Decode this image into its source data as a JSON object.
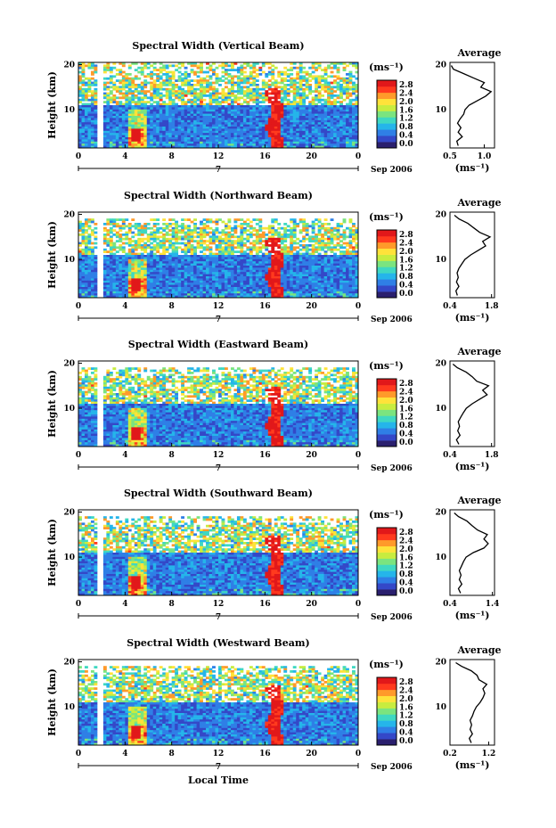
{
  "figure": {
    "x_axis_title": "Local Time",
    "date_label": "Sep 2006",
    "day_label": "7",
    "height_axis_title": "Height (km)",
    "unit_label": "(ms⁻¹)",
    "average_title": "Average",
    "colorbar_ticks": [
      "0.0",
      "0.4",
      "0.8",
      "1.2",
      "1.6",
      "2.0",
      "2.4",
      "2.8"
    ],
    "colors": {
      "colormap": [
        "#2a1f6e",
        "#3448c8",
        "#2f7fe6",
        "#25b5ea",
        "#3fd8c2",
        "#7be47f",
        "#c8ec3f",
        "#ffe23a",
        "#ff9a2a",
        "#ff3a1e",
        "#e1181a"
      ]
    }
  },
  "chart_data": [
    {
      "type": "heatmap",
      "title": "Spectral Width (Vertical Beam)",
      "x_ticks": [
        "0",
        "4",
        "8",
        "12",
        "16",
        "20",
        "0"
      ],
      "y_ticks": [
        "20",
        "10"
      ],
      "xlim": [
        0,
        24
      ],
      "ylim": [
        1.5,
        20.5
      ],
      "colorbar_range": [
        0.0,
        2.8
      ],
      "average_profile": {
        "x_ticks": [
          "0.5",
          "1.0"
        ],
        "xlim": [
          0.5,
          1.15
        ],
        "points": [
          [
            0.62,
            2
          ],
          [
            0.6,
            3
          ],
          [
            0.68,
            4
          ],
          [
            0.62,
            5
          ],
          [
            0.66,
            6
          ],
          [
            0.61,
            7
          ],
          [
            0.65,
            8
          ],
          [
            0.7,
            9
          ],
          [
            0.72,
            10
          ],
          [
            0.78,
            11
          ],
          [
            0.9,
            12
          ],
          [
            1.02,
            13
          ],
          [
            1.1,
            14
          ],
          [
            0.95,
            15
          ],
          [
            1.0,
            16
          ],
          [
            0.85,
            17
          ],
          [
            0.7,
            18
          ],
          [
            0.55,
            19
          ],
          [
            0.52,
            19.8
          ]
        ]
      }
    },
    {
      "type": "heatmap",
      "title": "Spectral Width (Northward Beam)",
      "x_ticks": [
        "0",
        "4",
        "8",
        "12",
        "16",
        "20",
        "0"
      ],
      "y_ticks": [
        "20",
        "10"
      ],
      "xlim": [
        0,
        24
      ],
      "ylim": [
        1.5,
        20.5
      ],
      "colorbar_range": [
        0.0,
        2.8
      ],
      "average_profile": {
        "x_ticks": [
          "0.4",
          "1.8"
        ],
        "xlim": [
          0.4,
          1.9
        ],
        "points": [
          [
            0.65,
            2
          ],
          [
            0.6,
            3
          ],
          [
            0.7,
            4
          ],
          [
            0.62,
            5
          ],
          [
            0.68,
            6
          ],
          [
            0.64,
            7
          ],
          [
            0.7,
            8
          ],
          [
            0.8,
            9
          ],
          [
            0.9,
            10
          ],
          [
            1.1,
            11
          ],
          [
            1.35,
            12
          ],
          [
            1.6,
            13
          ],
          [
            1.5,
            14
          ],
          [
            1.75,
            15
          ],
          [
            1.4,
            16
          ],
          [
            1.2,
            17
          ],
          [
            1.0,
            18
          ],
          [
            0.7,
            19
          ],
          [
            0.55,
            19.8
          ]
        ]
      }
    },
    {
      "type": "heatmap",
      "title": "Spectral Width (Eastward Beam)",
      "x_ticks": [
        "0",
        "4",
        "8",
        "12",
        "16",
        "20",
        "0"
      ],
      "y_ticks": [
        "20",
        "10"
      ],
      "xlim": [
        0,
        24
      ],
      "ylim": [
        1.5,
        20.5
      ],
      "colorbar_range": [
        0.0,
        2.8
      ],
      "average_profile": {
        "x_ticks": [
          "0.4",
          "1.8"
        ],
        "xlim": [
          0.4,
          1.9
        ],
        "points": [
          [
            0.7,
            2
          ],
          [
            0.62,
            3
          ],
          [
            0.74,
            4
          ],
          [
            0.66,
            5
          ],
          [
            0.72,
            6
          ],
          [
            0.68,
            7
          ],
          [
            0.76,
            8
          ],
          [
            0.85,
            9
          ],
          [
            0.95,
            10
          ],
          [
            1.15,
            11
          ],
          [
            1.4,
            12
          ],
          [
            1.65,
            13
          ],
          [
            1.5,
            14
          ],
          [
            1.7,
            15
          ],
          [
            1.3,
            16
          ],
          [
            1.15,
            17
          ],
          [
            0.95,
            18
          ],
          [
            0.65,
            19
          ],
          [
            0.5,
            19.8
          ]
        ]
      }
    },
    {
      "type": "heatmap",
      "title": "Spectral Width (Southward Beam)",
      "x_ticks": [
        "0",
        "4",
        "8",
        "12",
        "16",
        "20",
        "0"
      ],
      "y_ticks": [
        "20",
        "10"
      ],
      "xlim": [
        0,
        24
      ],
      "ylim": [
        1.5,
        20.5
      ],
      "colorbar_range": [
        0.0,
        2.8
      ],
      "average_profile": {
        "x_ticks": [
          "0.4",
          "1.4"
        ],
        "xlim": [
          0.4,
          1.45
        ],
        "points": [
          [
            0.65,
            2
          ],
          [
            0.6,
            3
          ],
          [
            0.68,
            4
          ],
          [
            0.62,
            5
          ],
          [
            0.66,
            6
          ],
          [
            0.62,
            7
          ],
          [
            0.67,
            8
          ],
          [
            0.72,
            9
          ],
          [
            0.78,
            10
          ],
          [
            0.95,
            11
          ],
          [
            1.2,
            12
          ],
          [
            1.3,
            13
          ],
          [
            1.2,
            14
          ],
          [
            1.28,
            15
          ],
          [
            1.05,
            16
          ],
          [
            0.92,
            17
          ],
          [
            0.8,
            18
          ],
          [
            0.6,
            19
          ],
          [
            0.5,
            19.8
          ]
        ]
      }
    },
    {
      "type": "heatmap",
      "title": "Spectral Width (Westward Beam)",
      "x_ticks": [
        "0",
        "4",
        "8",
        "12",
        "16",
        "20",
        "0"
      ],
      "y_ticks": [
        "20",
        "10"
      ],
      "xlim": [
        0,
        24
      ],
      "ylim": [
        1.5,
        20.5
      ],
      "colorbar_range": [
        0.0,
        2.8
      ],
      "average_profile": {
        "x_ticks": [
          "0.2",
          "1.2"
        ],
        "xlim": [
          0.2,
          1.35
        ],
        "points": [
          [
            0.75,
            2
          ],
          [
            0.7,
            3
          ],
          [
            0.78,
            4
          ],
          [
            0.72,
            5
          ],
          [
            0.76,
            6
          ],
          [
            0.72,
            7
          ],
          [
            0.78,
            8
          ],
          [
            0.82,
            9
          ],
          [
            0.88,
            10
          ],
          [
            0.98,
            11
          ],
          [
            1.05,
            12
          ],
          [
            1.1,
            13
          ],
          [
            1.05,
            14
          ],
          [
            1.15,
            15
          ],
          [
            0.95,
            16
          ],
          [
            0.9,
            17
          ],
          [
            0.75,
            18
          ],
          [
            0.5,
            19
          ],
          [
            0.35,
            19.8
          ]
        ]
      }
    }
  ]
}
